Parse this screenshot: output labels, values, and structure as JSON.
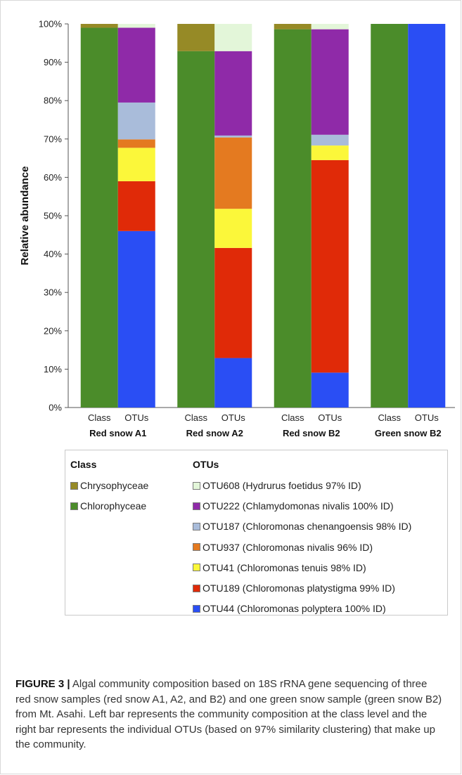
{
  "chart_data": {
    "type": "bar",
    "stacked": true,
    "ylabel": "Relative abundance",
    "ylim": [
      0,
      100
    ],
    "yticks": [
      "0%",
      "10%",
      "20%",
      "30%",
      "40%",
      "50%",
      "60%",
      "70%",
      "80%",
      "90%",
      "100%"
    ],
    "grid": false,
    "legend_position": "bottom",
    "groups": [
      {
        "label": "Red snow A1",
        "bars": [
          {
            "label": "Class",
            "stack": [
              {
                "name": "Chlorophyceae",
                "value": 99.0
              },
              {
                "name": "Chrysophyceae",
                "value": 1.0
              }
            ]
          },
          {
            "label": "OTUs",
            "stack": [
              {
                "name": "OTU44",
                "value": 46.0
              },
              {
                "name": "OTU189",
                "value": 13.0
              },
              {
                "name": "OTU41",
                "value": 8.7
              },
              {
                "name": "OTU937",
                "value": 2.2
              },
              {
                "name": "OTU187",
                "value": 9.6
              },
              {
                "name": "OTU222",
                "value": 19.5
              },
              {
                "name": "OTU608",
                "value": 1.0
              }
            ]
          }
        ]
      },
      {
        "label": "Red snow A2",
        "bars": [
          {
            "label": "Class",
            "stack": [
              {
                "name": "Chlorophyceae",
                "value": 92.9
              },
              {
                "name": "Chrysophyceae",
                "value": 7.1
              }
            ]
          },
          {
            "label": "OTUs",
            "stack": [
              {
                "name": "OTU44",
                "value": 12.9
              },
              {
                "name": "OTU189",
                "value": 28.7
              },
              {
                "name": "OTU41",
                "value": 10.2
              },
              {
                "name": "OTU937",
                "value": 18.6
              },
              {
                "name": "OTU187",
                "value": 0.5
              },
              {
                "name": "OTU222",
                "value": 22.0
              },
              {
                "name": "OTU608",
                "value": 7.1
              }
            ]
          }
        ]
      },
      {
        "label": "Red snow B2",
        "bars": [
          {
            "label": "Class",
            "stack": [
              {
                "name": "Chlorophyceae",
                "value": 98.6
              },
              {
                "name": "Chrysophyceae",
                "value": 1.4
              }
            ]
          },
          {
            "label": "OTUs",
            "stack": [
              {
                "name": "OTU44",
                "value": 9.1
              },
              {
                "name": "OTU189",
                "value": 55.4
              },
              {
                "name": "OTU41",
                "value": 3.8
              },
              {
                "name": "OTU937",
                "value": 0.0
              },
              {
                "name": "OTU187",
                "value": 2.8
              },
              {
                "name": "OTU222",
                "value": 27.5
              },
              {
                "name": "OTU608",
                "value": 1.4
              }
            ]
          }
        ]
      },
      {
        "label": "Green snow B2",
        "bars": [
          {
            "label": "Class",
            "stack": [
              {
                "name": "Chlorophyceae",
                "value": 100.0
              },
              {
                "name": "Chrysophyceae",
                "value": 0.0
              }
            ]
          },
          {
            "label": "OTUs",
            "stack": [
              {
                "name": "OTU44",
                "value": 100.0
              },
              {
                "name": "OTU189",
                "value": 0.0
              },
              {
                "name": "OTU41",
                "value": 0.0
              },
              {
                "name": "OTU937",
                "value": 0.0
              },
              {
                "name": "OTU187",
                "value": 0.0
              },
              {
                "name": "OTU222",
                "value": 0.0
              },
              {
                "name": "OTU608",
                "value": 0.0
              }
            ]
          }
        ]
      }
    ],
    "colors": {
      "Chrysophyceae": "#968a26",
      "Chlorophyceae": "#4b8c2a",
      "OTU608": "#e3f6d9",
      "OTU222": "#8f2aa8",
      "OTU187": "#a9bcda",
      "OTU937": "#e47a20",
      "OTU41": "#fbf73a",
      "OTU189": "#e02a08",
      "OTU44": "#2a4ef4"
    }
  },
  "legend": {
    "class_header": "Class",
    "otu_header": "OTUs",
    "class_items": [
      {
        "key": "Chrysophyceae",
        "label": "Chrysophyceae"
      },
      {
        "key": "Chlorophyceae",
        "label": "Chlorophyceae"
      }
    ],
    "otu_items": [
      {
        "key": "OTU608",
        "label": "OTU608 (Hydrurus foetidus 97% ID)"
      },
      {
        "key": "OTU222",
        "label": "OTU222 (Chlamydomonas nivalis 100% ID)"
      },
      {
        "key": "OTU187",
        "label": "OTU187 (Chloromonas chenangoensis 98% ID)"
      },
      {
        "key": "OTU937",
        "label": "OTU937 (Chloromonas nivalis 96% ID)"
      },
      {
        "key": "OTU41",
        "label": "OTU41 (Chloromonas tenuis 98% ID)"
      },
      {
        "key": "OTU189",
        "label": "OTU189 (Chloromonas platystigma 99% ID)"
      },
      {
        "key": "OTU44",
        "label": "OTU44 (Chloromonas polyptera 100% ID)"
      }
    ]
  },
  "caption": {
    "label": "FIGURE 3 |",
    "text": "Algal community composition based on 18S rRNA gene sequencing of three red snow samples (red snow A1, A2, and B2) and one green snow sample (green snow B2) from Mt. Asahi. Left bar represents the community composition at the class level and the right bar represents the individual OTUs (based on 97% similarity clustering) that make up the community."
  }
}
